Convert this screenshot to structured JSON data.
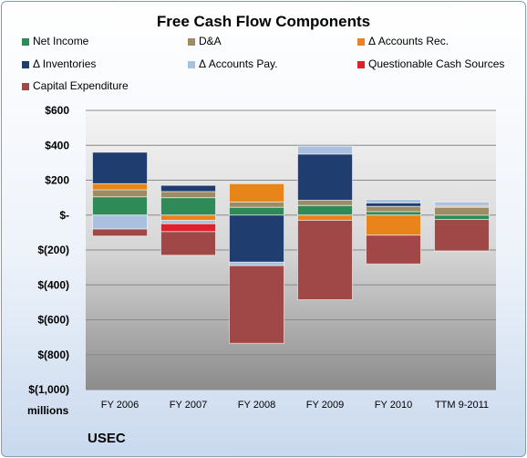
{
  "chart_data": {
    "type": "bar",
    "stacked": true,
    "title": "Free Cash Flow Components",
    "units_label": "millions",
    "company": "USEC",
    "categories": [
      "FY 2006",
      "FY 2007",
      "FY 2008",
      "FY 2009",
      "FY 2010",
      "TTM 9-2011"
    ],
    "ylim": [
      -1000,
      600
    ],
    "yticks": [
      600,
      400,
      200,
      0,
      -200,
      -400,
      -600,
      -800,
      -1000
    ],
    "ytick_labels": [
      "$600",
      "$400",
      "$200",
      "$-",
      "$(200)",
      "$(400)",
      "$(600)",
      "$(800)",
      "$(1,000)"
    ],
    "grid": true,
    "legend_position": "top",
    "series": [
      {
        "name": "Net Income",
        "color": "#2e8b57",
        "values": [
          105,
          100,
          45,
          55,
          20,
          -25
        ]
      },
      {
        "name": "D&A",
        "color": "#9c8b63",
        "values": [
          40,
          35,
          30,
          30,
          30,
          45
        ]
      },
      {
        "name": "Δ Accounts Rec.",
        "color": "#e8841a",
        "values": [
          35,
          -30,
          105,
          -30,
          -115,
          5
        ]
      },
      {
        "name": "Δ Inventories",
        "color": "#1f3d6e",
        "values": [
          180,
          35,
          -270,
          265,
          20,
          5
        ]
      },
      {
        "name": "Δ Accounts Pay.",
        "color": "#a9c1de",
        "values": [
          -80,
          -20,
          -20,
          45,
          20,
          20
        ]
      },
      {
        "name": "Questionable Cash Sources",
        "color": "#e0202a",
        "values": [
          0,
          -45,
          0,
          0,
          0,
          0
        ]
      },
      {
        "name": "Capital Expenditure",
        "color": "#a04848",
        "values": [
          -40,
          -135,
          -445,
          -455,
          -165,
          -180
        ]
      }
    ]
  }
}
